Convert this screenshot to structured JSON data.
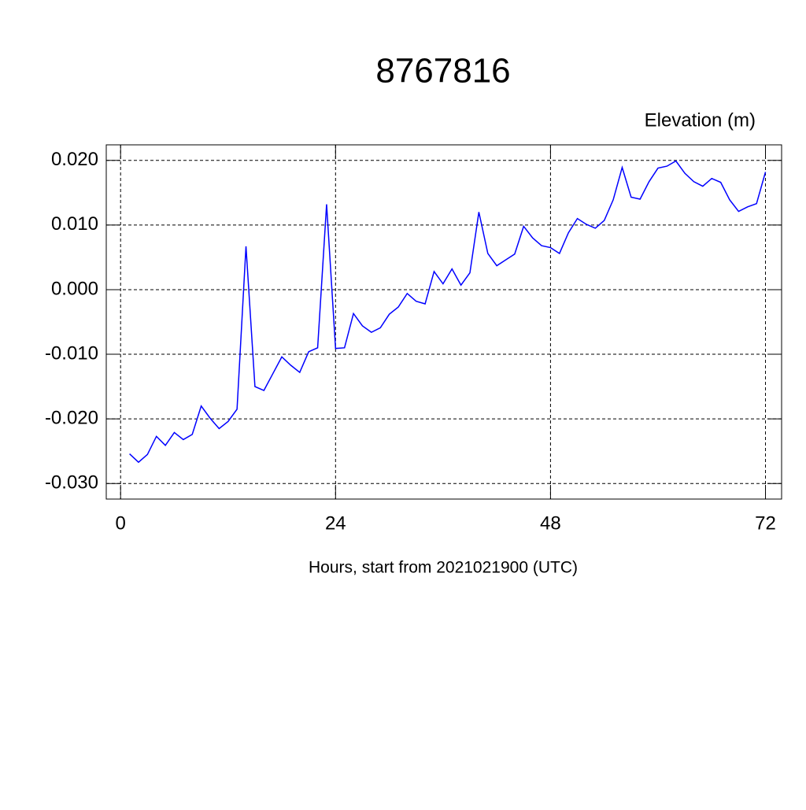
{
  "chart_data": {
    "type": "line",
    "title": "8767816",
    "ylabel": "Elevation (m)",
    "xlabel": "Hours, start from 2021021900 (UTC)",
    "x": [
      1,
      2,
      3,
      4,
      5,
      6,
      7,
      8,
      9,
      10,
      11,
      12,
      13,
      14,
      15,
      16,
      17,
      18,
      19,
      20,
      21,
      22,
      23,
      24,
      25,
      26,
      27,
      28,
      29,
      30,
      31,
      32,
      33,
      34,
      35,
      36,
      37,
      38,
      39,
      40,
      41,
      42,
      43,
      44,
      45,
      46,
      47,
      48,
      49,
      50,
      51,
      52,
      53,
      54,
      55,
      56,
      57,
      58,
      59,
      60,
      61,
      62,
      63,
      64,
      65,
      66,
      67,
      68,
      69,
      70,
      71,
      72
    ],
    "series": [
      {
        "color": "#0000ff",
        "values": [
          -0.0254,
          -0.0267,
          -0.0255,
          -0.0227,
          -0.0241,
          -0.0221,
          -0.0232,
          -0.0224,
          -0.018,
          -0.0199,
          -0.0215,
          -0.0204,
          -0.0185,
          0.0067,
          -0.015,
          -0.0156,
          -0.013,
          -0.0104,
          -0.0117,
          -0.0128,
          -0.0096,
          -0.009,
          0.0132,
          -0.0091,
          -0.009,
          -0.0037,
          -0.0056,
          -0.0066,
          -0.0059,
          -0.0038,
          -0.0027,
          -0.0006,
          -0.0018,
          -0.0022,
          0.0028,
          0.0009,
          0.0032,
          0.0007,
          0.0026,
          0.012,
          0.0056,
          0.0037,
          0.0046,
          0.0055,
          0.0098,
          0.008,
          0.0068,
          0.0065,
          0.0056,
          0.0088,
          0.011,
          0.0101,
          0.0095,
          0.0107,
          0.0139,
          0.0189,
          0.0143,
          0.014,
          0.0167,
          0.0188,
          0.0191,
          0.0199,
          0.018,
          0.0167,
          0.016,
          0.0172,
          0.0166,
          0.0139,
          0.0121,
          0.0128,
          0.0133,
          0.0182
        ]
      }
    ],
    "xlim": [
      -1.6,
      73.8
    ],
    "xticks": [
      0,
      24,
      48,
      72
    ],
    "ylim": [
      -0.0324,
      0.0224
    ],
    "yticks": [
      {
        "value": 0.02,
        "label": "0.020"
      },
      {
        "value": 0.01,
        "label": "0.010"
      },
      {
        "value": 0,
        "label": "0.000"
      },
      {
        "value": -0.01,
        "label": "-0.010"
      },
      {
        "value": -0.02,
        "label": "-0.020"
      },
      {
        "value": -0.03,
        "label": "-0.030"
      }
    ],
    "grid": true
  }
}
